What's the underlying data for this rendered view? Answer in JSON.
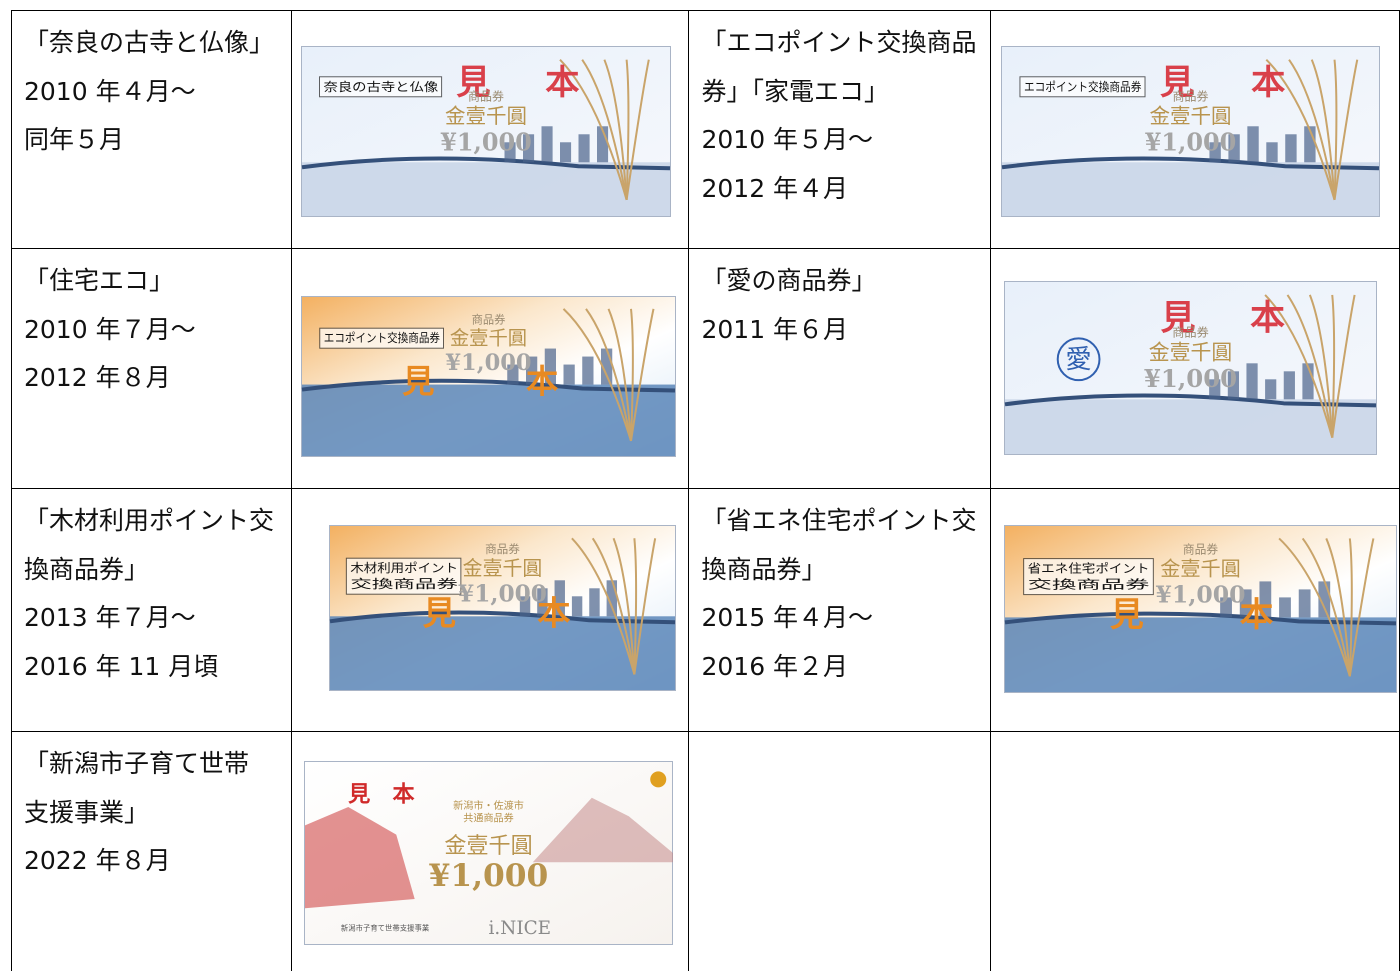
{
  "table": {
    "rows": [
      [
        {
          "lines": [
            "「奈良の古寺と仏像」",
            "2010 年４月～",
            "同年５月"
          ]
        },
        {
          "voucher": {
            "style": "blue",
            "label": [
              "奈良の古寺と仏像"
            ],
            "mark": [
              "見",
              "本"
            ],
            "kind": "商品券",
            "amount": "金壹千圓",
            "yen": "¥1,000"
          }
        },
        {
          "lines": [
            "「エコポイント交換商品",
            "券」「家電エコ」",
            "2010 年５月～",
            "2012 年４月"
          ]
        },
        {
          "voucher": {
            "style": "blue",
            "label": [
              "エコポイント交換商品券"
            ],
            "mark": [
              "見",
              "本"
            ],
            "kind": "商品券",
            "amount": "金壹千圓",
            "yen": "¥1,000"
          }
        }
      ],
      [
        {
          "lines": [
            "「住宅エコ」",
            "2010 年７月～",
            "2012 年８月"
          ]
        },
        {
          "voucher": {
            "style": "orange",
            "label": [
              "エコポイント交換商品券"
            ],
            "mark": [
              "見",
              "本"
            ],
            "kind": "商品券",
            "amount": "金壹千圓",
            "yen": "¥1,000"
          }
        },
        {
          "lines": [
            "「愛の商品券」",
            "2011 年６月"
          ]
        },
        {
          "voucher": {
            "style": "blue",
            "seal": "愛",
            "mark": [
              "見",
              "本"
            ],
            "kind": "商品券",
            "amount": "金壹千圓",
            "yen": "¥1,000"
          }
        }
      ],
      [
        {
          "lines": [
            "「木材利用ポイント交",
            "換商品券」",
            "2013 年７月～",
            "2016 年 11 月頃"
          ]
        },
        {
          "voucher": {
            "style": "orange",
            "label": [
              "木材利用ポイント",
              "交換商品券"
            ],
            "mark": [
              "見",
              "本"
            ],
            "kind": "商品券",
            "amount": "金壹千圓",
            "yen": "¥1,000"
          }
        },
        {
          "lines": [
            "「省エネ住宅ポイント交",
            "換商品券」",
            "2015 年４月～",
            "2016 年２月"
          ]
        },
        {
          "voucher": {
            "style": "orange",
            "label": [
              "省エネ住宅ポイント",
              "交換商品券"
            ],
            "mark": [
              "見",
              "本"
            ],
            "kind": "商品券",
            "amount": "金壹千圓",
            "yen": "¥1,000"
          }
        }
      ],
      [
        {
          "lines": [
            "「新潟市子育て世帯",
            "支援事業」",
            "2022 年８月"
          ]
        },
        {
          "voucher": {
            "style": "new",
            "label": [
              "新潟市・佐渡市",
              "共通商品券"
            ],
            "mark": [
              "見",
              "本"
            ],
            "amount": "金壹千圓",
            "yen": "¥1,000",
            "brand": "i.NICE",
            "footer": "新潟市子育て世帯支援事業"
          }
        }
      ]
    ]
  }
}
